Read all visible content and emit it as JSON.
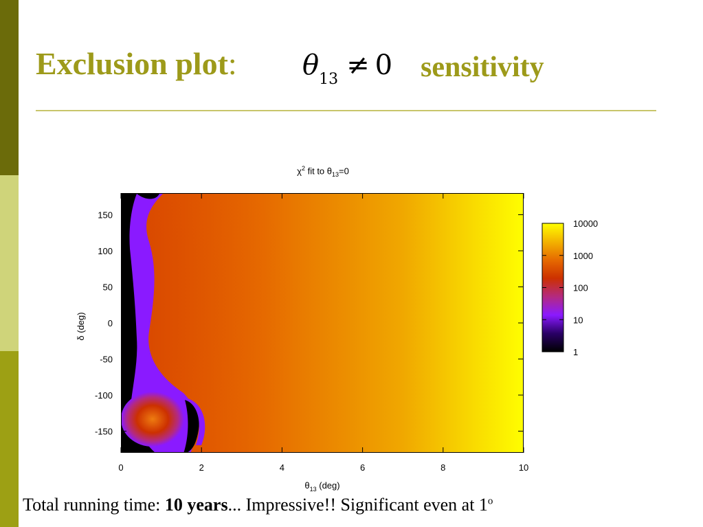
{
  "slide": {
    "title_main": "Exclusion plot",
    "title_colon": ":",
    "formula_symbol": "θ",
    "formula_subscript": "13",
    "formula_relation": "≠",
    "formula_value": "0",
    "title_suffix": "sensitivity",
    "footer_prefix": "Total running time: ",
    "footer_bold": "10 years",
    "footer_suffix": "...  Impressive!!  Significant even at 1",
    "footer_superscript": "o",
    "colors": {
      "title": "#9d9a1a",
      "sidebar": [
        "#6b6b0a",
        "#cfd47a",
        "#9da014"
      ],
      "rule": "#c8c56a"
    }
  },
  "chart_data": {
    "type": "heatmap",
    "title_prefix": "χ",
    "title_sup": "2",
    "title_mid": " fit to θ",
    "title_sub": "13",
    "title_suffix": "=0",
    "xlabel": "θ",
    "xlabel_sub": "13",
    "xlabel_unit": " (deg)",
    "ylabel": "δ (deg)",
    "xlim": [
      0,
      10
    ],
    "ylim": [
      -180,
      180
    ],
    "xticks": [
      0,
      2,
      4,
      6,
      8,
      10
    ],
    "yticks": [
      -150,
      -100,
      -50,
      0,
      50,
      100,
      150
    ],
    "colorbar": {
      "scale": "log",
      "range": [
        1,
        10000
      ],
      "ticks": [
        "1",
        "10",
        "100",
        "1000",
        "10000"
      ]
    },
    "colormap": [
      "#000000",
      "#2a0066",
      "#8a1aff",
      "#b42a80",
      "#cc3000",
      "#e66a00",
      "#f3b300",
      "#ffff00"
    ],
    "grid": false
  }
}
